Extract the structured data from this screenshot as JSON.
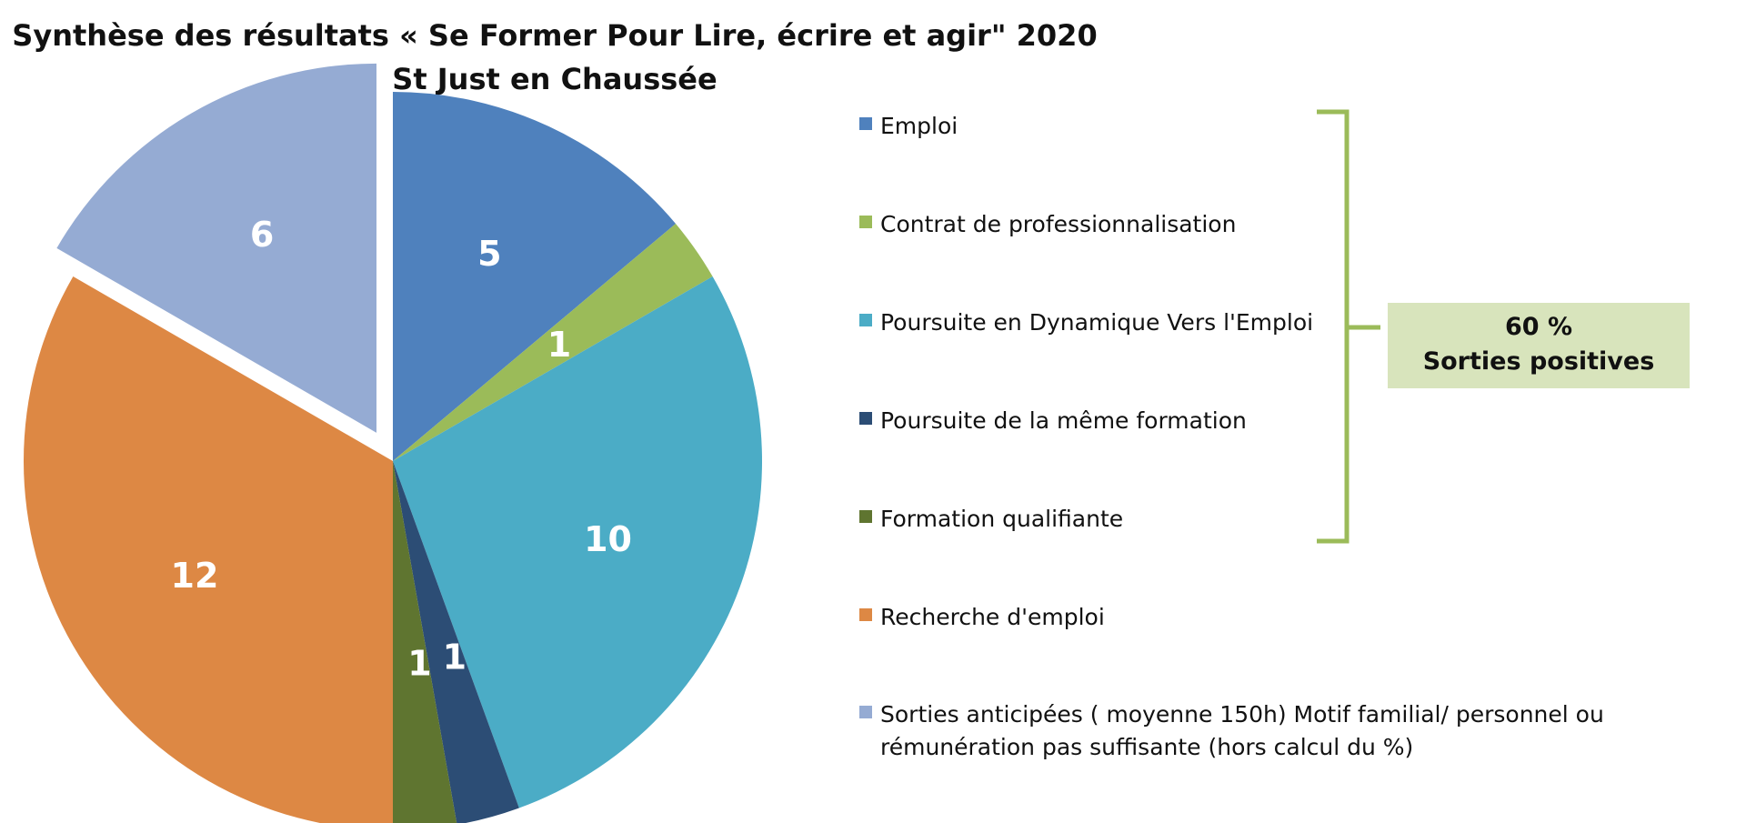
{
  "chart_data": {
    "type": "pie",
    "title": "Synthèse des résultats « Se Former Pour Lire, écrire et agir\" 2020",
    "subtitle": "St Just en Chaussée",
    "slices": [
      {
        "label": "Emploi",
        "value": 5,
        "color": "#4f81bd",
        "exploded": false
      },
      {
        "label": "Contrat de professionnalisation",
        "value": 1,
        "color": "#9bbb59",
        "exploded": false
      },
      {
        "label": "Poursuite en Dynamique Vers l'Emploi",
        "value": 10,
        "color": "#4bacc6",
        "exploded": false
      },
      {
        "label": "Poursuite de la même formation",
        "value": 1,
        "color": "#2c4d75",
        "exploded": false
      },
      {
        "label": "Formation qualifiante",
        "value": 1,
        "color": "#5f7530",
        "exploded": false
      },
      {
        "label": "Recherche d'emploi",
        "value": 12,
        "color": "#dd8844",
        "exploded": false
      },
      {
        "label": "Sorties anticipées ( moyenne 150h) Motif familial/ personnel ou rémunération pas suffisante (hors calcul du %)",
        "value": 6,
        "color": "#95abd3",
        "exploded": true
      }
    ],
    "legend_position": "right",
    "data_labels": true
  },
  "legend": {
    "items": [
      {
        "label": "Emploi",
        "color": "#4f81bd"
      },
      {
        "label": "Contrat de professionnalisation",
        "color": "#9bbb59"
      },
      {
        "label": "Poursuite en Dynamique Vers l'Emploi",
        "color": "#4bacc6"
      },
      {
        "label": "Poursuite de la même formation",
        "color": "#2c4d75"
      },
      {
        "label": "Formation qualifiante",
        "color": "#5f7530"
      },
      {
        "label": "Recherche d'emploi",
        "color": "#dd8844"
      },
      {
        "label": "Sorties anticipées ( moyenne 150h) Motif familial/ personnel ou rémunération pas suffisante (hors calcul du %)",
        "color": "#95abd3"
      }
    ]
  },
  "callout": {
    "line1": "60 %",
    "line2": "Sorties positives",
    "background": "#d8e4bc",
    "bracket_color": "#9bbb59"
  }
}
